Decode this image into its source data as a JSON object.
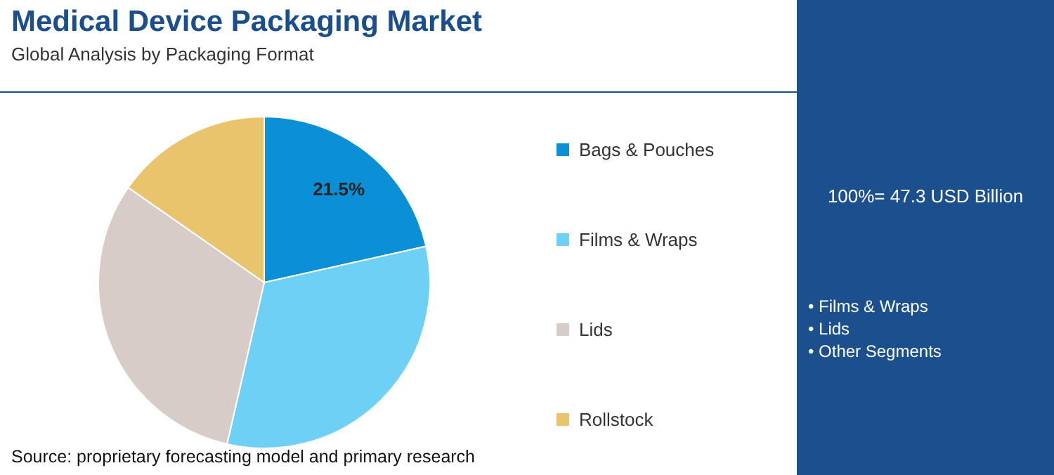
{
  "chart_data": {
    "type": "pie",
    "title": "Medical Device Packaging Market",
    "subtitle": "Global Analysis by Packaging Format",
    "categories": [
      "Bags & Pouches",
      "Films & Wraps",
      "Lids",
      "Rollstock"
    ],
    "values": [
      21.5,
      32.1,
      31.1,
      15.3
    ],
    "colors": [
      "#0b8fd6",
      "#6fd0f5",
      "#d8ccc8",
      "#e9c46c"
    ],
    "value_labels": [
      "21.5%",
      null,
      null,
      null
    ],
    "legend": "right",
    "annotations": [
      "Source: proprietary forecasting model and primary research",
      "100%= 47.3 USD Billion",
      "• Films & Wraps",
      "• Lids",
      "• Other Segments"
    ]
  }
}
